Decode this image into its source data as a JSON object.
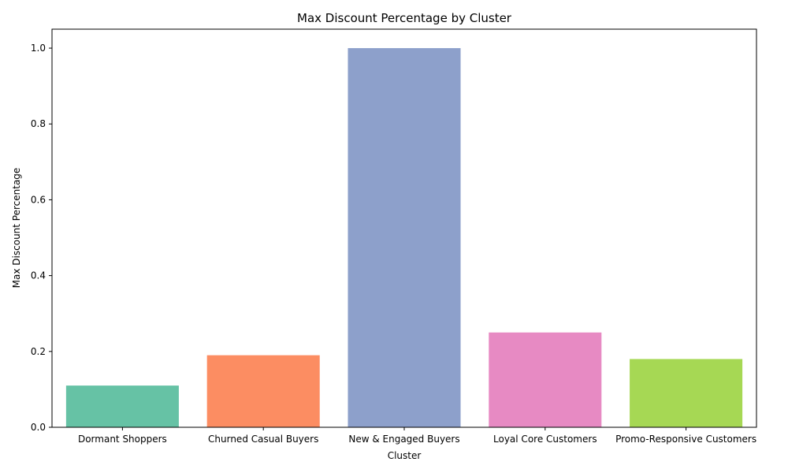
{
  "chart_data": {
    "type": "bar",
    "title": "Max Discount Percentage by Cluster",
    "xlabel": "Cluster",
    "ylabel": "Max Discount Percentage",
    "categories": [
      "Dormant Shoppers",
      "Churned Casual Buyers",
      "New & Engaged Buyers",
      "Loyal Core Customers",
      "Promo-Responsive Customers"
    ],
    "values": [
      0.11,
      0.19,
      1.0,
      0.25,
      0.18
    ],
    "colors": [
      "#66c2a5",
      "#fc8d62",
      "#8da0cb",
      "#e78ac3",
      "#a6d854"
    ],
    "ylim": [
      0,
      1.05
    ],
    "yticks": [
      "0.0",
      "0.2",
      "0.4",
      "0.6",
      "0.8",
      "1.0"
    ],
    "grid": false,
    "legend": "none"
  }
}
